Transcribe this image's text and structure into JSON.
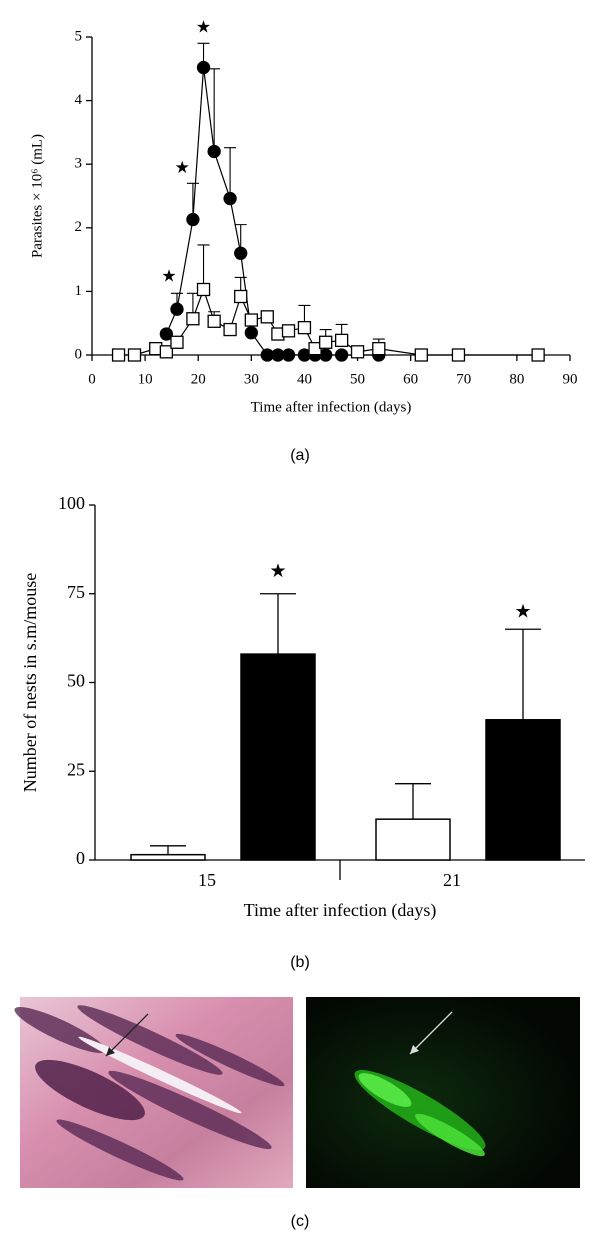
{
  "chart_data": [
    {
      "type": "line",
      "xlabel": "Time after infection (days)",
      "ylabel": "Parasites × 10⁶ (mL)",
      "xlim": [
        0,
        90
      ],
      "xticks": [
        0,
        10,
        20,
        30,
        40,
        50,
        60,
        70,
        80,
        90
      ],
      "ylim": [
        0,
        5
      ],
      "yticks": [
        0,
        1,
        2,
        3,
        4,
        5
      ],
      "series": [
        {
          "marker": "circle",
          "color": "#000000",
          "x": [
            14,
            16,
            19,
            21,
            23,
            26,
            28,
            30,
            33,
            35,
            37,
            40,
            42,
            44,
            47,
            54
          ],
          "values": [
            0.33,
            0.72,
            2.13,
            4.52,
            3.2,
            2.46,
            1.6,
            0.35,
            0,
            0,
            0,
            0,
            0,
            0,
            0,
            0
          ],
          "errors": [
            null,
            0.25,
            0.57,
            0.38,
            1.3,
            0.8,
            0.45,
            null,
            null,
            null,
            null,
            null,
            null,
            null,
            null,
            null
          ]
        },
        {
          "marker": "square",
          "color": "#ffffff",
          "x": [
            5,
            8,
            12,
            14,
            16,
            19,
            21,
            23,
            26,
            28,
            30,
            33,
            35,
            37,
            40,
            42,
            44,
            47,
            50,
            54,
            62,
            69,
            84
          ],
          "values": [
            0,
            0,
            0.1,
            0.05,
            0.2,
            0.57,
            1.03,
            0.53,
            0.4,
            0.92,
            0.55,
            0.6,
            0.33,
            0.38,
            0.43,
            0.1,
            0.2,
            0.23,
            0.05,
            0.1,
            0,
            0,
            0
          ],
          "errors": [
            null,
            null,
            null,
            null,
            null,
            0.4,
            0.7,
            0.15,
            null,
            0.3,
            null,
            null,
            null,
            null,
            0.35,
            null,
            0.2,
            0.25,
            null,
            0.15,
            null,
            null,
            null
          ]
        }
      ],
      "annotations": [
        {
          "text": "★",
          "x": 14.5,
          "y": 1.22
        },
        {
          "text": "★",
          "x": 17,
          "y": 2.92
        },
        {
          "text": "★",
          "x": 21,
          "y": 5.13
        }
      ]
    },
    {
      "type": "bar",
      "xlabel": "Time after infection (days)",
      "ylabel": "Number of nests in s.m/mouse",
      "categories": [
        "15",
        "21"
      ],
      "ylim": [
        0,
        100
      ],
      "yticks": [
        0,
        25,
        50,
        75,
        100
      ],
      "series": [
        {
          "color": "#ffffff",
          "values": [
            1.5,
            11.5
          ],
          "errors": [
            2.5,
            10
          ]
        },
        {
          "color": "#000000",
          "values": [
            58,
            39.5
          ],
          "errors": [
            17,
            25.5
          ]
        }
      ],
      "annotations": [
        {
          "text": "★",
          "category": 0,
          "series": 1,
          "y": 81
        },
        {
          "text": "★",
          "category": 1,
          "series": 1,
          "y": 69.5
        }
      ]
    }
  ],
  "captions": [
    "(a)",
    "(b)",
    "(c)"
  ]
}
